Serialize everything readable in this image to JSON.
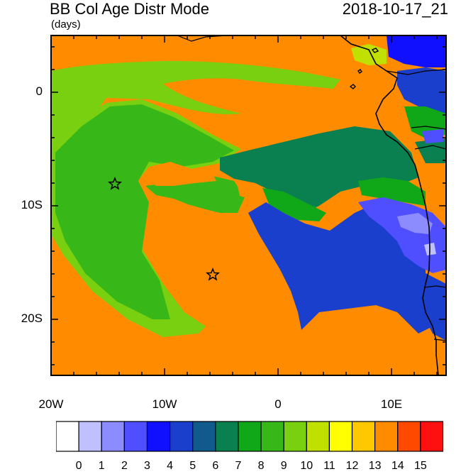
{
  "title": "BB Col Age Distr Mode",
  "date": "2018-10-17_21",
  "units": "(days)",
  "y_labels": [
    "0",
    "10S",
    "20S"
  ],
  "x_labels": [
    "20W",
    "10W",
    "0",
    "10E"
  ],
  "colorbar": {
    "labels": [
      "0",
      "1",
      "2",
      "3",
      "4",
      "5",
      "6",
      "7",
      "8",
      "9",
      "10",
      "11",
      "12",
      "13",
      "14",
      "15"
    ],
    "colors": [
      "#ffffff",
      "#c0c0ff",
      "#8c8cff",
      "#4f4fff",
      "#1010ff",
      "#1a3fcc",
      "#105a8c",
      "#0a8050",
      "#10a818",
      "#38b818",
      "#78d010",
      "#c0e000",
      "#ffff00",
      "#ffc800",
      "#ff8c00",
      "#ff4800",
      "#ff1010"
    ]
  },
  "markers": [
    "star",
    "star"
  ],
  "map_colors": {
    "orange": "#ff8c00",
    "light_green": "#78d010",
    "green": "#38b818",
    "dark_green": "#10a818",
    "teal": "#0a8050",
    "blue": "#1a3fcc",
    "mid_blue": "#4f4fff",
    "light_blue": "#8c8cff",
    "bright_blue": "#1010ff",
    "yellow_green": "#c0e000"
  }
}
